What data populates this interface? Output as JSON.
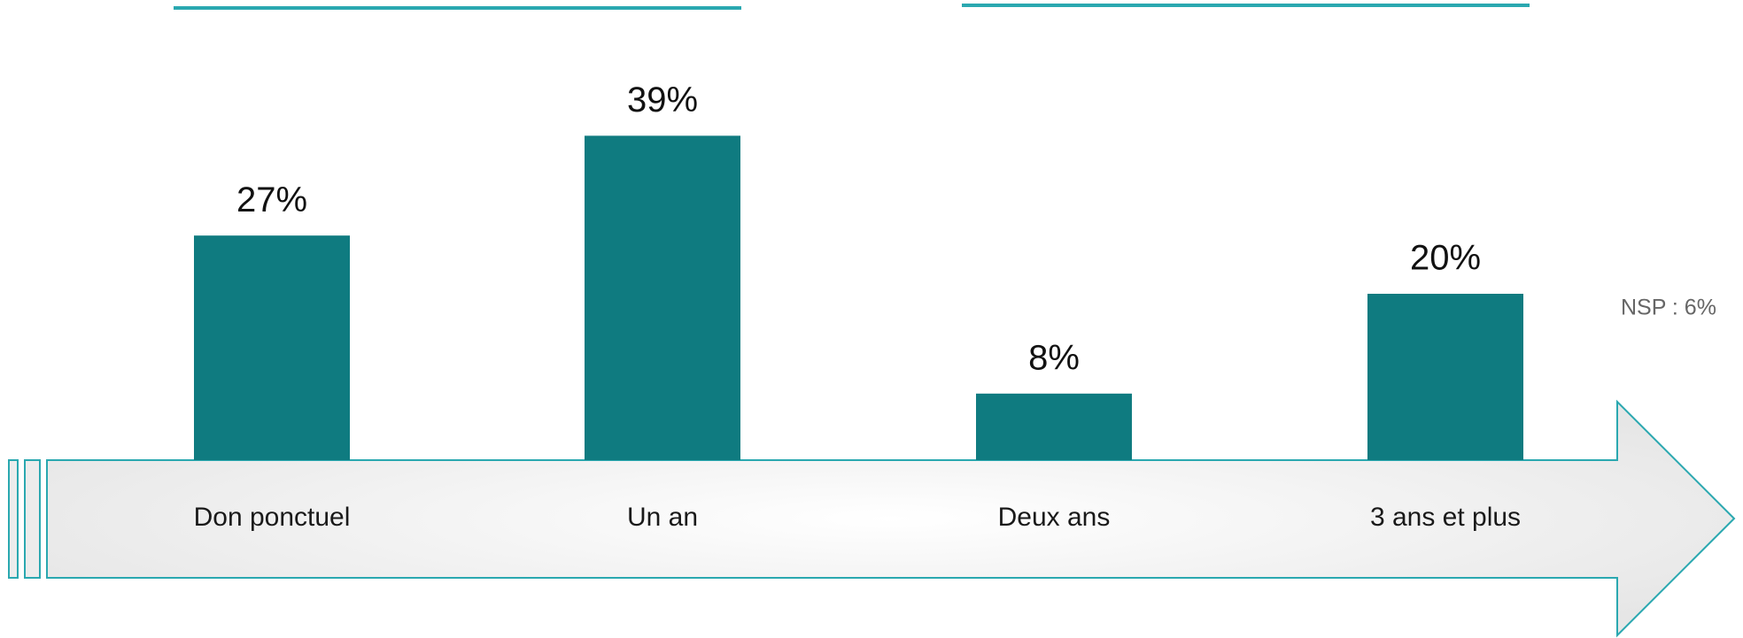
{
  "chart_data": {
    "type": "bar",
    "categories": [
      "Don ponctuel",
      "Un an",
      "Deux ans",
      "3 ans et plus"
    ],
    "values": [
      27,
      39,
      8,
      20
    ],
    "value_labels": [
      "27%",
      "39%",
      "8%",
      "20%"
    ],
    "color": "#0f7b80",
    "annotation": "NSP : 6%"
  }
}
